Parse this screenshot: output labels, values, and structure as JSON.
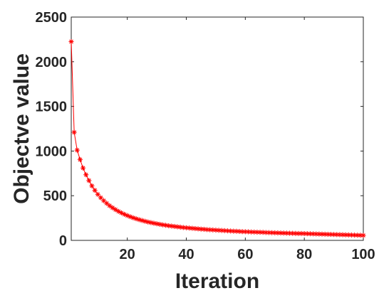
{
  "chart_data": {
    "type": "line",
    "title": "",
    "xlabel": "Iteration",
    "ylabel": "Objectve value",
    "xlim": [
      1,
      100
    ],
    "ylim": [
      0,
      2500
    ],
    "xticks": [
      20,
      40,
      60,
      80,
      100
    ],
    "xtick_labels": [
      "20",
      "40",
      "60",
      "80",
      "100"
    ],
    "yticks": [
      0,
      500,
      1000,
      1500,
      2000,
      2500
    ],
    "ytick_labels": [
      "0",
      "500",
      "1000",
      "1500",
      "2000",
      "2500"
    ],
    "grid": false,
    "legend": "none",
    "series": [
      {
        "color": "#ff0000",
        "marker": "asterisk",
        "x": [
          1,
          2,
          3,
          4,
          5,
          6,
          7,
          8,
          9,
          10,
          11,
          12,
          13,
          14,
          15,
          16,
          17,
          18,
          19,
          20,
          21,
          22,
          23,
          24,
          25,
          26,
          27,
          28,
          29,
          30,
          31,
          32,
          33,
          34,
          35,
          36,
          37,
          38,
          39,
          40,
          41,
          42,
          43,
          44,
          45,
          46,
          47,
          48,
          49,
          50,
          51,
          52,
          53,
          54,
          55,
          56,
          57,
          58,
          59,
          60,
          61,
          62,
          63,
          64,
          65,
          66,
          67,
          68,
          69,
          70,
          71,
          72,
          73,
          74,
          75,
          76,
          77,
          78,
          79,
          80,
          81,
          82,
          83,
          84,
          85,
          86,
          87,
          88,
          89,
          90,
          91,
          92,
          93,
          94,
          95,
          96,
          97,
          98,
          99,
          100
        ],
        "y": [
          2225,
          1210,
          1010,
          905,
          810,
          735,
          670,
          610,
          560,
          515,
          478,
          445,
          415,
          388,
          365,
          344,
          325,
          308,
          292,
          278,
          265,
          253,
          242,
          232,
          223,
          214,
          206,
          199,
          192,
          186,
          180,
          174,
          169,
          164,
          160,
          156,
          152,
          148,
          144,
          141,
          138,
          135,
          132,
          129,
          126,
          124,
          121,
          119,
          117,
          115,
          113,
          111,
          109,
          107,
          105,
          103,
          102,
          100,
          98,
          97,
          96,
          94,
          93,
          92,
          91,
          90,
          88,
          87,
          86,
          85,
          84,
          83,
          82,
          81,
          80,
          79,
          78,
          77,
          77,
          76,
          75,
          74,
          73,
          72,
          71,
          70,
          69,
          68,
          67,
          66,
          65,
          64,
          63,
          62,
          61,
          60,
          59,
          58,
          57,
          56
        ]
      }
    ]
  }
}
